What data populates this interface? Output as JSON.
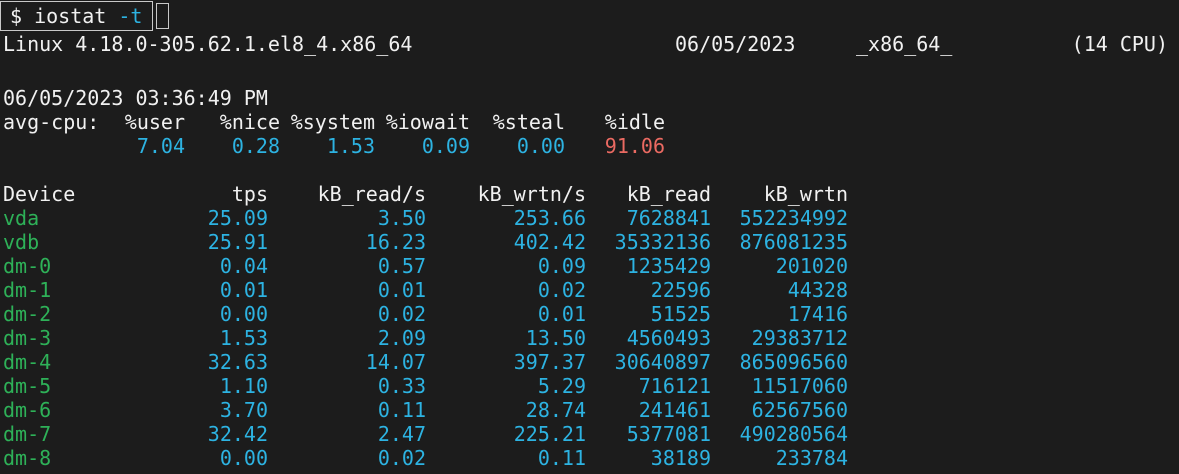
{
  "terminal": {
    "prompt": "$ ",
    "command": "iostat ",
    "flag": "-t"
  },
  "system_line": {
    "kernel": "Linux 4.18.0-305.62.1.el8_4.x86_64",
    "date": "06/05/2023",
    "arch": "_x86_64_",
    "cpu_count": "(14 CPU)"
  },
  "report": {
    "timestamp": "06/05/2023 03:36:49 PM"
  },
  "avg_cpu": {
    "label": "avg-cpu:",
    "headers": [
      "%user",
      "%nice",
      "%system",
      "%iowait",
      "%steal",
      "%idle"
    ],
    "values": [
      "7.04",
      "0.28",
      "1.53",
      "0.09",
      "0.00",
      "91.06"
    ]
  },
  "device_table": {
    "headers": [
      "Device",
      "tps",
      "kB_read/s",
      "kB_wrtn/s",
      "kB_read",
      "kB_wrtn"
    ],
    "rows": [
      {
        "name": "vda",
        "values": [
          "25.09",
          "3.50",
          "253.66",
          "7628841",
          "552234992"
        ]
      },
      {
        "name": "vdb",
        "values": [
          "25.91",
          "16.23",
          "402.42",
          "35332136",
          "876081235"
        ]
      },
      {
        "name": "dm-0",
        "values": [
          "0.04",
          "0.57",
          "0.09",
          "1235429",
          "201020"
        ]
      },
      {
        "name": "dm-1",
        "values": [
          "0.01",
          "0.01",
          "0.02",
          "22596",
          "44328"
        ]
      },
      {
        "name": "dm-2",
        "values": [
          "0.00",
          "0.02",
          "0.01",
          "51525",
          "17416"
        ]
      },
      {
        "name": "dm-3",
        "values": [
          "1.53",
          "2.09",
          "13.50",
          "4560493",
          "29383712"
        ]
      },
      {
        "name": "dm-4",
        "values": [
          "32.63",
          "14.07",
          "397.37",
          "30640897",
          "865096560"
        ]
      },
      {
        "name": "dm-5",
        "values": [
          "1.10",
          "0.33",
          "5.29",
          "716121",
          "11517060"
        ]
      },
      {
        "name": "dm-6",
        "values": [
          "3.70",
          "0.11",
          "28.74",
          "241461",
          "62567560"
        ]
      },
      {
        "name": "dm-7",
        "values": [
          "32.42",
          "2.47",
          "225.21",
          "5377081",
          "490280564"
        ]
      },
      {
        "name": "dm-8",
        "values": [
          "0.00",
          "0.02",
          "0.11",
          "38189",
          "233784"
        ]
      }
    ]
  },
  "colors": {
    "background": "#1c1c1c",
    "foreground": "#f1f1f1",
    "value_cyan": "#2db3e2",
    "device_green": "#2eb158",
    "idle_red": "#eb6a62",
    "box_border": "#c9c9c9"
  }
}
